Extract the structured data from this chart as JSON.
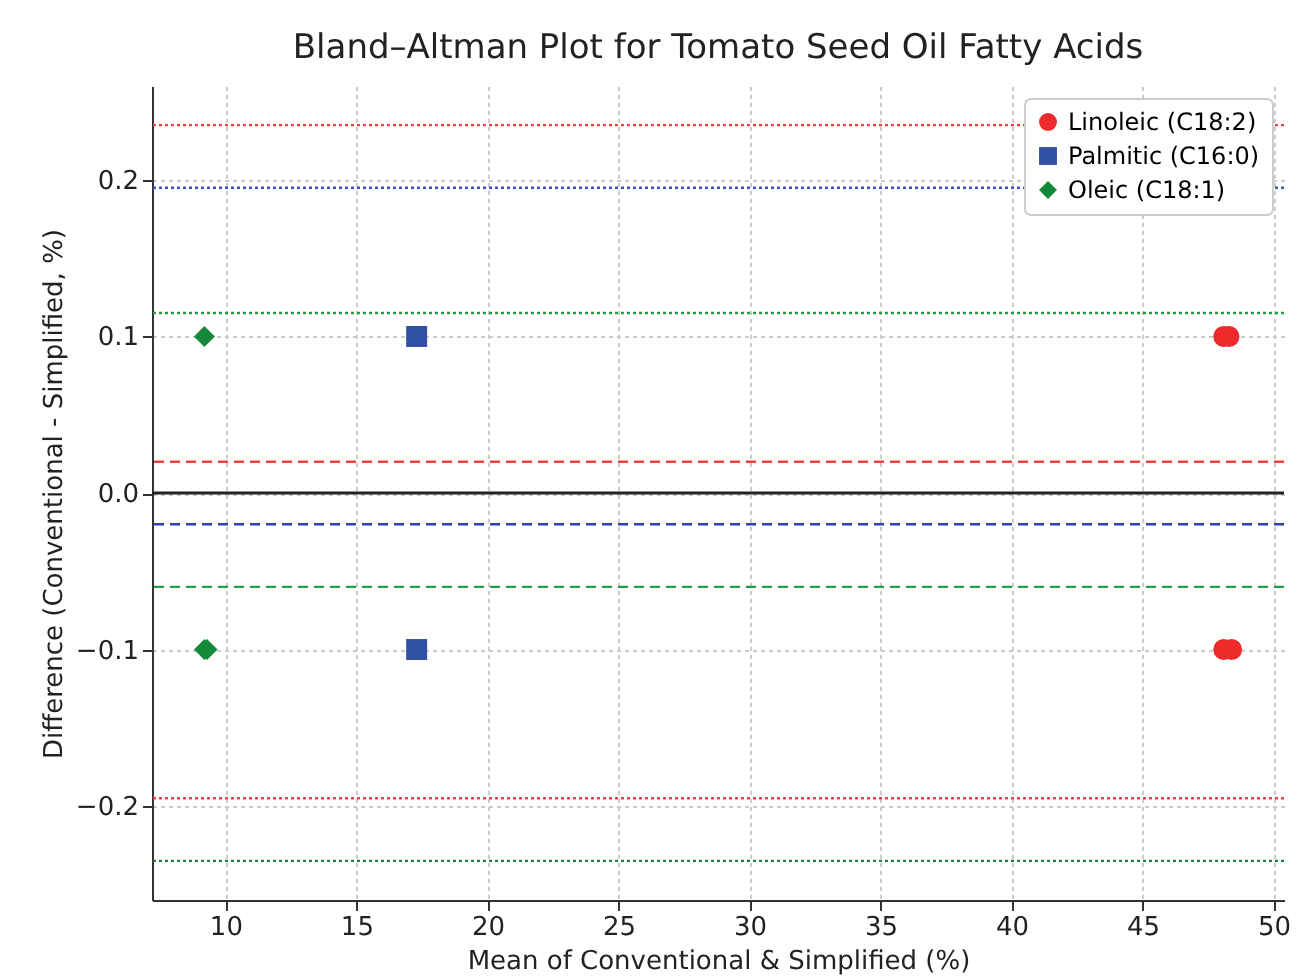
{
  "chart_data": {
    "type": "scatter",
    "title": "Bland–Altman Plot for Tomato Seed Oil Fatty Acids",
    "xlabel": "Mean of Conventional & Simplified (%)",
    "ylabel": "Difference (Conventional - Simplified, %)",
    "xlim": [
      7.2,
      50.4
    ],
    "xticks": [
      10,
      15,
      20,
      25,
      30,
      35,
      40,
      45,
      50
    ],
    "ylim": [
      -0.26,
      0.26
    ],
    "yticks": [
      {
        "value": -0.2,
        "label": "−0.2"
      },
      {
        "value": -0.1,
        "label": "−0.1"
      },
      {
        "value": 0,
        "label": "0.0"
      },
      {
        "value": 0.1,
        "label": "0.1"
      },
      {
        "value": 0.2,
        "label": "0.2"
      }
    ],
    "grid": true,
    "legend": "top right",
    "series": [
      {
        "name": "Linoleic (C18:2)",
        "color": "#ee2a2a",
        "marker": "circle",
        "x": [
          48.1,
          48.3,
          48.1,
          48.4
        ],
        "values": [
          0.1,
          0.1,
          -0.1,
          -0.1
        ]
      },
      {
        "name": "Palmitic (C16:0)",
        "color": "#3050a4",
        "marker": "square",
        "x": [
          17.3,
          17.3
        ],
        "values": [
          0.1,
          -0.1
        ]
      },
      {
        "name": "Oleic (C18:1)",
        "color": "#14893a",
        "marker": "diamond",
        "x": [
          9.2,
          9.2,
          9.3
        ],
        "values": [
          0.1,
          -0.1,
          -0.1
        ]
      }
    ],
    "ref_lines": [
      {
        "axis": "y",
        "value": 0,
        "color": "#222222",
        "line_style": "solid"
      },
      {
        "axis": "y",
        "value": 0.235,
        "color": "#f04040",
        "line_style": "dotted"
      },
      {
        "axis": "y",
        "value": 0.02,
        "color": "#f04040",
        "line_style": "dashed"
      },
      {
        "axis": "y",
        "value": -0.195,
        "color": "#f04040",
        "line_style": "dotted"
      },
      {
        "axis": "y",
        "value": 0.195,
        "color": "#4050c0",
        "line_style": "dotted"
      },
      {
        "axis": "y",
        "value": -0.02,
        "color": "#3040b0",
        "line_style": "dashed"
      },
      {
        "axis": "y",
        "value": 0.115,
        "color": "#20a040",
        "line_style": "dotted"
      },
      {
        "axis": "y",
        "value": -0.06,
        "color": "#20a040",
        "line_style": "dashed"
      },
      {
        "axis": "y",
        "value": -0.235,
        "color": "#208040",
        "line_style": "dotted"
      }
    ]
  }
}
